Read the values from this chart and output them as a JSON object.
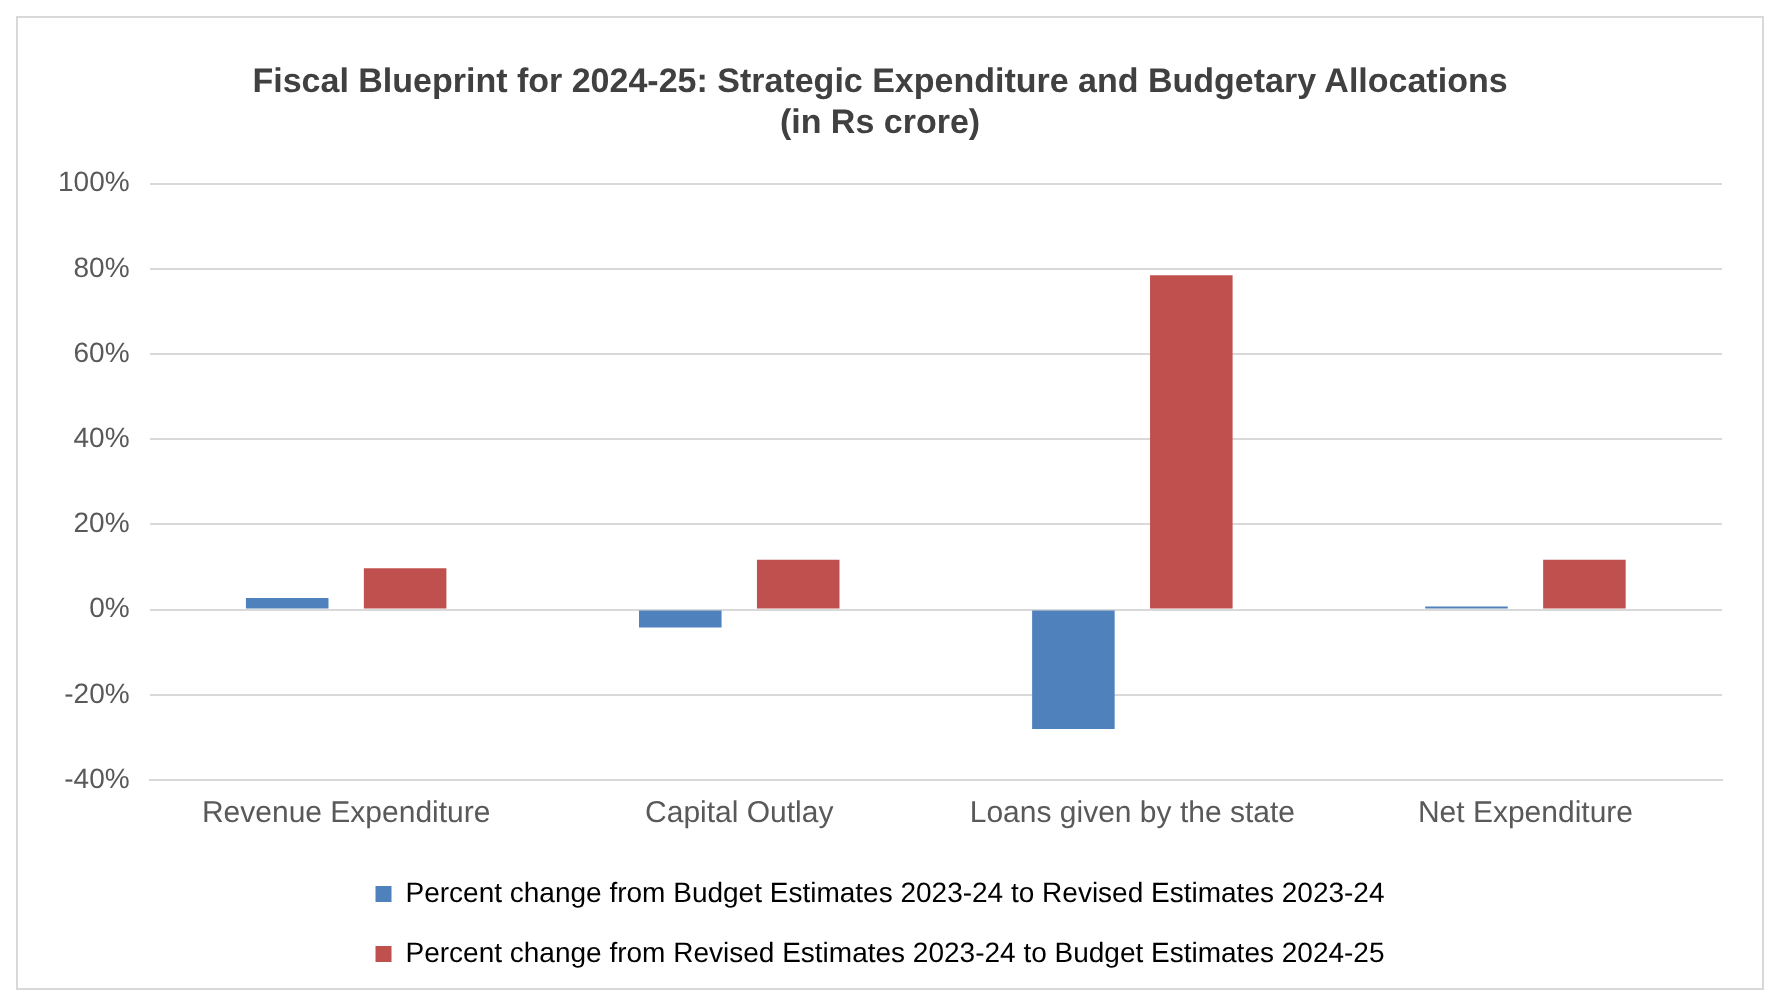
{
  "chart_data": {
    "type": "bar",
    "title": "Fiscal Blueprint for 2024-25: Strategic Expenditure and Budgetary Allocations\n(in Rs crore)",
    "categories": [
      "Revenue Expenditure",
      "Capital Outlay",
      "Loans given by the state",
      "Net Expenditure"
    ],
    "series": [
      {
        "name": "Percent change from Budget Estimates 2023-24 to Revised Estimates 2023-24",
        "color": "#4f81bd",
        "values": [
          2.7,
          -4.2,
          -28,
          0.7
        ]
      },
      {
        "name": "Percent change from Revised Estimates 2023-24 to Budget Estimates 2024-25",
        "color": "#c0504d",
        "values": [
          9.7,
          11.7,
          78.5,
          11.7
        ]
      }
    ],
    "ylim": [
      -40,
      100
    ],
    "yticks": [
      {
        "value": -40,
        "label": "-40%"
      },
      {
        "value": -20,
        "label": "-20%"
      },
      {
        "value": 0,
        "label": "0%"
      },
      {
        "value": 20,
        "label": "20%"
      },
      {
        "value": 40,
        "label": "40%"
      },
      {
        "value": 60,
        "label": "60%"
      },
      {
        "value": 80,
        "label": "80%"
      },
      {
        "value": 100,
        "label": "100%"
      }
    ],
    "grid": "y",
    "legend": "bottom"
  }
}
